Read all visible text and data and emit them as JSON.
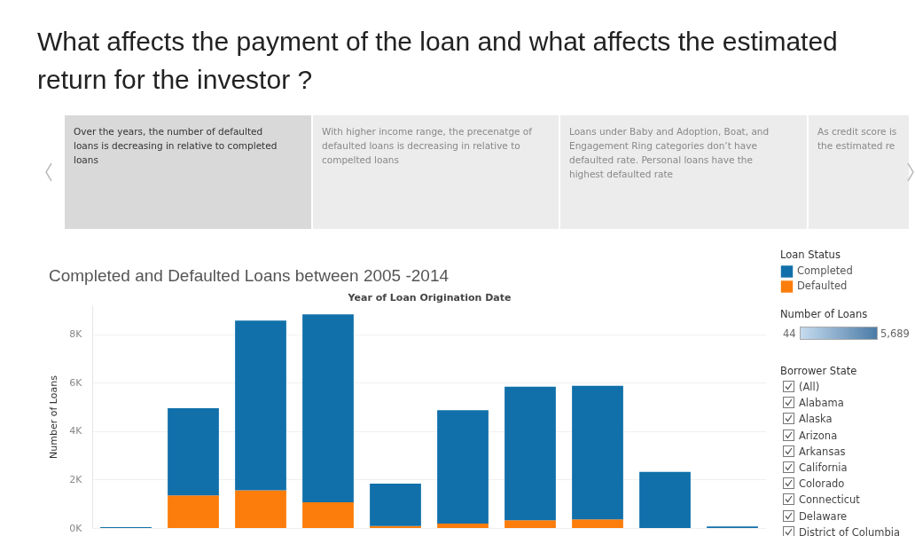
{
  "chart_data": {
    "type": "bar",
    "title": "What affects the payment of the loan and what affects the estimated return for the investor ?",
    "subtitle": "Completed and Defaulted Loans between 2005 -2014",
    "xlabel": "Year of Loan Origination Date",
    "ylabel": "Number of Loans",
    "legend_title": "Loan Status",
    "categories": [
      null,
      null,
      null,
      null,
      null,
      null,
      null,
      null,
      null,
      null
    ],
    "stacked": true,
    "series": [
      {
        "name": "Defaulted",
        "color": "#fc7d0b",
        "values": [
          null,
          1350,
          1560,
          1060,
          80,
          180,
          320,
          360,
          null,
          null
        ]
      },
      {
        "name": "Completed",
        "color": "#1170aa",
        "values": [
          40,
          3600,
          7010,
          7760,
          1750,
          4690,
          5520,
          5510,
          2320,
          60
        ]
      }
    ],
    "ylim": [
      0,
      9200
    ],
    "yticks": [
      {
        "value": 0,
        "label": "0K"
      },
      {
        "value": 2000,
        "label": "2K"
      },
      {
        "value": 4000,
        "label": "4K"
      },
      {
        "value": 6000,
        "label": "6K"
      },
      {
        "value": 8000,
        "label": "8K"
      }
    ],
    "grid": "y",
    "legend": "top right",
    "tick_labels": "y",
    "annotations": [
      "Over the years, the number of defaulted loans is decreasing in relative to completed loans",
      "With higher income range, the precenatge of defaulted loans is  decreasing in relative to compelted loans",
      "Loans under Baby and Adoption, Boat, and Engagement Ring categories don’t have defaulted rate. Personal loans have the highest defaulted rate",
      "As credit score is the estimated re",
      "Number of Loans",
      "44",
      "5,689",
      "Borrower State",
      "(All)",
      "Alabama",
      "Alaska",
      "Arizona",
      "Arkansas",
      "California",
      "Colorado",
      "Connecticut",
      "Delaware",
      "District of Columbia"
    ]
  }
}
